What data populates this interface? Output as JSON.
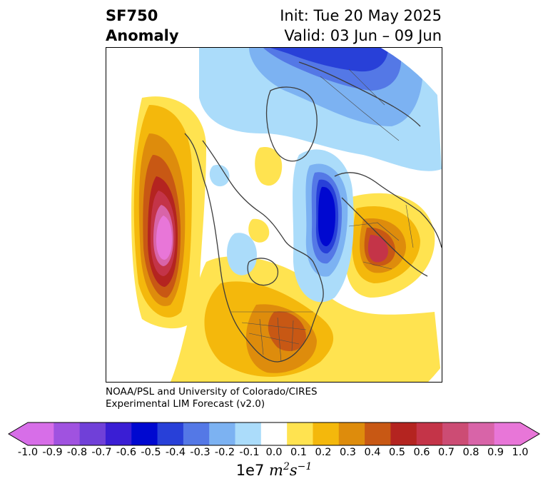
{
  "title": {
    "variable": "SF750",
    "subtitle": "Anomaly",
    "init": "Init: Tue 20 May 2025",
    "valid": "Valid: 03 Jun – 09 Jun"
  },
  "credit": {
    "line1": "NOAA/PSL and University of Colorado/CIRES",
    "line2": "Experimental LIM Forecast (v2.0)"
  },
  "colorbar": {
    "ticks": [
      "-1.0",
      "-0.9",
      "-0.8",
      "-0.7",
      "-0.6",
      "-0.5",
      "-0.4",
      "-0.3",
      "-0.2",
      "-0.1",
      "0.0",
      "0.1",
      "0.2",
      "0.3",
      "0.4",
      "0.5",
      "0.6",
      "0.7",
      "0.8",
      "0.9",
      "1.0"
    ],
    "colors": [
      "#d76ee8",
      "#a052e0",
      "#7040d8",
      "#3a1ed4",
      "#0008d0",
      "#2840d8",
      "#5478e6",
      "#7cb2f2",
      "#abdcfa",
      "#ffffff",
      "#ffe350",
      "#f4b80c",
      "#de8c0c",
      "#c85814",
      "#b42420",
      "#c43448",
      "#cc4c74",
      "#d864a8",
      "#e876d8"
    ],
    "units_base": "1e7",
    "units_m": "m",
    "units_m_exp": "2",
    "units_s": "s",
    "units_s_exp": "−1"
  },
  "map": {
    "projection": "north polar stereographic",
    "features": [
      "coastlines",
      "country borders",
      "US state borders"
    ]
  }
}
